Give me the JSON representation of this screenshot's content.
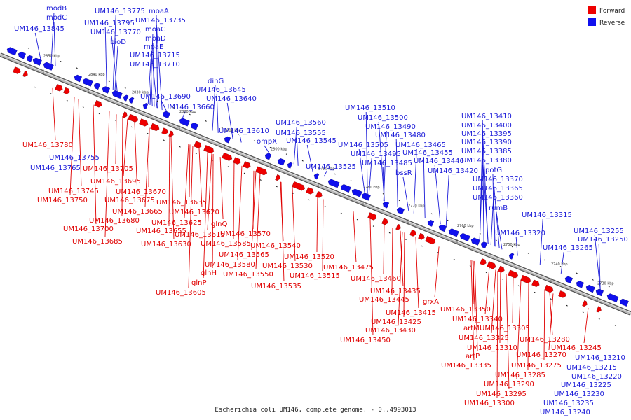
{
  "caption": "Escherichia coli UM146, complete genome. - 0..4993013",
  "legend": [
    {
      "label": "Forward",
      "color": "#ee0000"
    },
    {
      "label": "Reverse",
      "color": "#1010ee"
    }
  ],
  "colors": {
    "forward": "#ee0000",
    "reverse": "#1010ee",
    "backbone": "#9a9a9a"
  },
  "ticks": [
    "2850 kbp",
    "2840 kbp",
    "2830 kbp",
    "2820 kbp",
    "2810 kbp",
    "2800 kbp",
    "2790 kbp",
    "2780 kbp",
    "2770 kbp",
    "2760 kbp",
    "2750 kbp",
    "2740 kbp",
    "2730 kbp"
  ],
  "reverse_labels": [
    "modB",
    "modC",
    "UM146_13845",
    "UM146_13775",
    "UM146_13795",
    "UM146_13770",
    "bioD",
    "moaA",
    "UM146_13735",
    "moaC",
    "moaD",
    "moaE",
    "UM146_13715",
    "UM146_13710",
    "UM146_13690",
    "dinG",
    "UM146_13645",
    "UM146_13640",
    "UM146_13660",
    "UM146_13610",
    "ompX",
    "UM146_13560",
    "UM146_13555",
    "UM146_13545",
    "UM146_13525",
    "UM146_13510",
    "UM146_13500",
    "UM146_13490",
    "UM146_13480",
    "UM146_13505",
    "UM146_13495",
    "UM146_13485",
    "bssR",
    "UM146_13465",
    "UM146_13455",
    "UM146_13440",
    "UM146_13420",
    "UM146_13410",
    "UM146_13400",
    "UM146_13395",
    "UM146_13390",
    "UM146_13385",
    "UM146_13380",
    "potG",
    "UM146_13370",
    "UM146_13365",
    "UM146_13360",
    "rumB",
    "UM146_13315",
    "UM146_13320",
    "UM146_13255",
    "UM146_13265",
    "UM146_13250",
    "UM146_13755",
    "UM146_13765",
    "UM146_13210",
    "UM146_13215",
    "UM146_13220",
    "UM146_13225",
    "UM146_13230",
    "UM146_13235",
    "UM146_13240"
  ],
  "forward_labels": [
    "UM146_13780",
    "UM146_13705",
    "UM146_13695",
    "UM146_13745",
    "UM146_13670",
    "UM146_13750",
    "UM146_13675",
    "UM146_13635",
    "UM146_13665",
    "UM146_13620",
    "UM146_13680",
    "UM146_13625",
    "UM146_13700",
    "UM146_13655",
    "UM146_13615",
    "glnQ",
    "UM146_13570",
    "UM146_13685",
    "UM146_13630",
    "UM146_13585",
    "UM146_13565",
    "UM146_13540",
    "UM146_13520",
    "UM146_13580",
    "UM146_13530",
    "glnH",
    "UM146_13550",
    "UM146_13475",
    "UM146_13515",
    "glnP",
    "UM146_13535",
    "UM146_13460",
    "UM146_13605",
    "UM146_13435",
    "UM146_13445",
    "grxA",
    "UM146_13415",
    "UM146_13425",
    "UM146_13430",
    "UM146_13450",
    "UM146_13350",
    "UM146_13340",
    "artM",
    "UM146_13305",
    "UM146_13325",
    "UM146_13280",
    "UM146_13310",
    "UM146_13270",
    "artP",
    "UM146_13275",
    "UM146_13245",
    "UM146_13335",
    "UM146_13285",
    "UM146_13290",
    "UM146_13295",
    "UM146_13300"
  ]
}
